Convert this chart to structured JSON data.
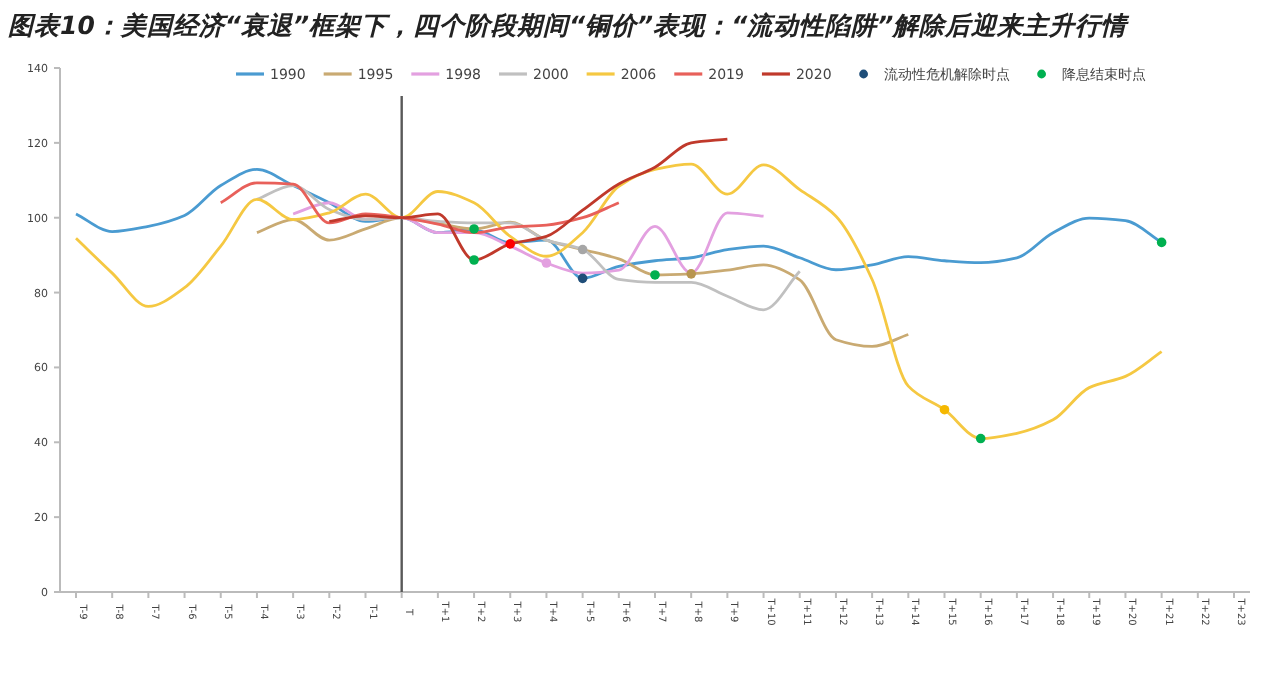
{
  "chart_data": {
    "type": "line",
    "title": "图表10：美国经济“衰退”框架下，四个阶段期间“铜价”表现：“流动性陷阱”解除后迎来主升行情",
    "categories": [
      "T-9",
      "T-8",
      "T-7",
      "T-6",
      "T-5",
      "T-4",
      "T-3",
      "T-2",
      "T-1",
      "T",
      "T+1",
      "T+2",
      "T+3",
      "T+4",
      "T+5",
      "T+6",
      "T+7",
      "T+8",
      "T+9",
      "T+10",
      "T+11",
      "T+12",
      "T+13",
      "T+14",
      "T+15",
      "T+16",
      "T+17",
      "T+18",
      "T+19",
      "T+20",
      "T+21",
      "T+22",
      "T+23"
    ],
    "ylim": [
      0,
      140
    ],
    "yticks": [
      0,
      20,
      40,
      60,
      80,
      100,
      120,
      140
    ],
    "grid": false,
    "legend": "top",
    "line_style": "solid",
    "ref_lines": [
      {
        "axis": "x",
        "value": "T",
        "color": "#595959"
      }
    ],
    "series": [
      {
        "name": "1990",
        "color": "#4a9bd1",
        "values": [
          101,
          96.3,
          97.7,
          100.6,
          108.6,
          112.9,
          108.6,
          104,
          99,
          100,
          96,
          96.8,
          93.3,
          94,
          83.8,
          87,
          88.5,
          89.3,
          91.5,
          92.4,
          89.3,
          86.1,
          87.4,
          89.6,
          88.5,
          88,
          89.3,
          96,
          99.9,
          99.2,
          93.4,
          null,
          null
        ]
      },
      {
        "name": "1995",
        "color": "#c9aa72",
        "values": [
          null,
          null,
          null,
          null,
          null,
          96,
          99.5,
          94,
          97,
          100,
          98.5,
          97,
          98.8,
          94,
          91.5,
          89,
          84.7,
          85,
          86,
          87.4,
          83.4,
          67.4,
          65.6,
          68.8,
          null,
          null,
          null,
          null,
          null,
          null,
          null,
          null,
          null
        ]
      },
      {
        "name": "1998",
        "color": "#e3a0e0",
        "values": [
          null,
          null,
          null,
          null,
          null,
          null,
          101,
          104,
          99.5,
          100,
          96,
          96,
          92.4,
          87.9,
          85.2,
          86,
          97.7,
          85.2,
          101.3,
          100.4,
          null,
          null,
          null,
          null,
          null,
          null,
          null,
          null,
          null,
          null,
          null,
          null,
          null
        ]
      },
      {
        "name": "2000",
        "color": "#c0c0c0",
        "values": [
          null,
          null,
          null,
          null,
          null,
          104.9,
          108.6,
          102.2,
          99.5,
          100,
          99,
          98.6,
          98.6,
          94,
          91.5,
          83.5,
          82.7,
          82.7,
          79,
          75.4,
          85.7,
          null,
          null,
          null,
          null,
          null,
          null,
          null,
          null,
          null,
          null,
          null,
          null
        ]
      },
      {
        "name": "2006",
        "color": "#f5c842",
        "values": [
          94.5,
          85.2,
          76.3,
          81.3,
          92.4,
          104.9,
          99.5,
          101.3,
          106.3,
          100,
          107,
          104,
          95,
          89.7,
          96,
          108.4,
          112.9,
          114.3,
          106.3,
          114.1,
          107.5,
          100.4,
          83.5,
          55,
          48.7,
          41,
          42.4,
          46,
          54.6,
          57.6,
          64.2,
          null,
          null
        ]
      },
      {
        "name": "2019",
        "color": "#e8605a",
        "values": [
          null,
          null,
          null,
          null,
          104,
          109.3,
          109,
          98.6,
          101,
          100,
          98.3,
          96,
          97.5,
          98,
          100,
          104,
          null,
          null,
          null,
          null,
          null,
          null,
          null,
          null,
          null,
          null,
          null,
          null,
          null,
          null,
          null,
          null,
          null
        ]
      },
      {
        "name": "2020",
        "color": "#c0392b",
        "values": [
          null,
          null,
          null,
          null,
          null,
          null,
          null,
          99,
          100.5,
          100,
          101,
          88.7,
          93,
          95,
          102,
          109,
          113.5,
          120,
          121,
          null,
          null,
          null,
          null,
          null,
          null,
          null,
          null,
          null,
          null,
          null,
          null,
          null,
          null
        ]
      },
      {
        "name": "流动性危机解除时点",
        "type": "scatter",
        "marker": "circle",
        "color": "#1f4e79",
        "x": [
          "T+5",
          "T+4",
          "T+5",
          "T+3",
          "T+8",
          "T+15"
        ],
        "colors": [
          "#1f4e79",
          "#e3a0e0",
          "#a6a6a6",
          "#ff0000",
          "#b8954f",
          "#f5b800"
        ],
        "values": [
          83.8,
          87.9,
          91.5,
          93,
          85,
          48.7
        ]
      },
      {
        "name": "降息结束时点",
        "type": "scatter",
        "marker": "circle",
        "color": "#00b050",
        "x": [
          "T+2",
          "T+2",
          "T+7",
          "T+16",
          "T+21"
        ],
        "values": [
          97,
          88.7,
          84.7,
          41,
          93.4
        ]
      }
    ]
  }
}
